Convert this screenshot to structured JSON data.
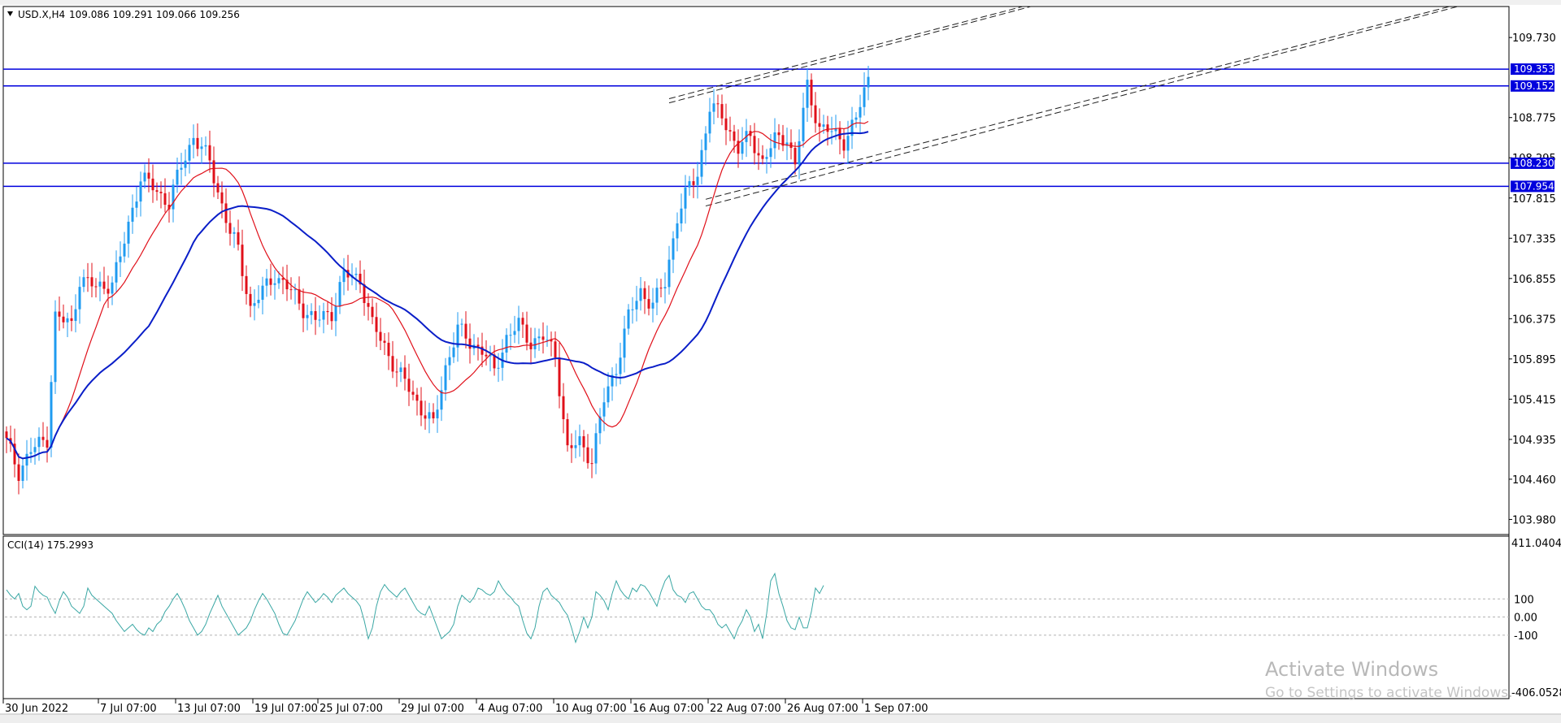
{
  "header": {
    "symbol": "USD.X,H4",
    "ohlc": "109.086 109.291 109.066 109.256"
  },
  "indicator": {
    "label": "CCI(14) 175.2993",
    "levels": [
      100,
      0,
      -100
    ],
    "level_labels": [
      "100",
      "0.00",
      "-100"
    ],
    "range": [
      -406.0528,
      411.0404
    ],
    "range_labels": [
      "411.0404",
      "-406.0528"
    ],
    "color": "#3aa7a4",
    "values": [
      150,
      120,
      100,
      130,
      60,
      40,
      60,
      170,
      140,
      120,
      110,
      60,
      20,
      90,
      140,
      110,
      60,
      40,
      20,
      60,
      160,
      120,
      100,
      80,
      60,
      40,
      20,
      -20,
      -50,
      -80,
      -60,
      -40,
      -70,
      -90,
      -100,
      -60,
      -80,
      -40,
      -20,
      30,
      60,
      100,
      130,
      90,
      40,
      -20,
      -60,
      -100,
      -80,
      -40,
      20,
      70,
      120,
      60,
      20,
      -20,
      -60,
      -100,
      -80,
      -60,
      -20,
      40,
      90,
      130,
      100,
      60,
      20,
      -40,
      -90,
      -100,
      -60,
      -20,
      40,
      100,
      140,
      110,
      80,
      100,
      130,
      110,
      80,
      120,
      140,
      160,
      130,
      110,
      90,
      60,
      -20,
      -120,
      -60,
      60,
      140,
      180,
      150,
      130,
      110,
      140,
      160,
      120,
      80,
      40,
      20,
      10,
      60,
      0,
      -60,
      -120,
      -100,
      -80,
      -40,
      60,
      120,
      100,
      80,
      110,
      160,
      150,
      130,
      120,
      140,
      200,
      160,
      130,
      110,
      80,
      60,
      -20,
      -90,
      -120,
      -60,
      60,
      140,
      160,
      120,
      100,
      80,
      40,
      10,
      -60,
      -140,
      -80,
      0,
      -60,
      0,
      140,
      120,
      90,
      40,
      130,
      200,
      150,
      120,
      100,
      160,
      140,
      180,
      170,
      140,
      100,
      60,
      140,
      200,
      230,
      150,
      120,
      110,
      80,
      130,
      140,
      100,
      60,
      40,
      40,
      10,
      -40,
      -60,
      -40,
      -80,
      -120,
      -60,
      -20,
      40,
      0,
      -80,
      -40,
      -120,
      20,
      200,
      240,
      130,
      60,
      -20,
      -60,
      -70,
      0,
      -60,
      -60,
      30,
      160,
      130,
      175
    ]
  },
  "watermark": {
    "line1": "Activate Windows",
    "line2": "Go to Settings to activate Windows."
  },
  "chart_data": {
    "type": "candlestick",
    "symbol": "USD.X",
    "timeframe": "H4",
    "last_price": 109.256,
    "ylim": [
      103.8,
      110.1
    ],
    "yticks": [
      109.73,
      108.775,
      108.295,
      107.815,
      107.335,
      106.855,
      106.375,
      105.895,
      105.415,
      104.935,
      104.46,
      103.98
    ],
    "ytick_labels": [
      "109.730",
      "108.775",
      "108.295",
      "107.815",
      "107.335",
      "106.855",
      "106.375",
      "105.895",
      "105.415",
      "104.935",
      "104.460",
      "103.980"
    ],
    "xticks": [
      {
        "label": "30 Jun 2022",
        "index": 0
      },
      {
        "label": "7 Jul 07:00",
        "index": 23
      },
      {
        "label": "13 Jul 07:00",
        "index": 42
      },
      {
        "label": "19 Jul 07:00",
        "index": 61
      },
      {
        "label": "25 Jul 07:00",
        "index": 77
      },
      {
        "label": "29 Jul 07:00",
        "index": 97
      },
      {
        "label": "4 Aug 07:00",
        "index": 116
      },
      {
        "label": "10 Aug 07:00",
        "index": 135
      },
      {
        "label": "16 Aug 07:00",
        "index": 154
      },
      {
        "label": "22 Aug 07:00",
        "index": 173
      },
      {
        "label": "26 Aug 07:00",
        "index": 192
      },
      {
        "label": "1 Sep 07:00",
        "index": 211
      }
    ],
    "up_color": "#1f9bf0",
    "down_color": "#e0101a",
    "ma_fast_color": "#e0101a",
    "ma_slow_color": "#0a1ec8",
    "hline_color": "#0000dd",
    "channel_color": "#202020",
    "horizontal_lines": [
      {
        "price": 109.353,
        "label": "109.353"
      },
      {
        "price": 109.152,
        "label": "109.152"
      },
      {
        "price": 108.23,
        "label": "108.230"
      },
      {
        "price": 107.954,
        "label": "107.954"
      }
    ],
    "channels": [
      {
        "x1": 163,
        "p1": 109.0,
        "x2": 250,
        "p2": 110.1
      },
      {
        "x1": 163,
        "p1": 108.95,
        "x2": 252,
        "p2": 110.1
      },
      {
        "x1": 172,
        "p1": 107.8,
        "x2": 355,
        "p2": 110.1
      },
      {
        "x1": 172,
        "p1": 107.72,
        "x2": 357,
        "p2": 110.1
      }
    ],
    "anchors": [
      [
        0,
        104.9
      ],
      [
        3,
        104.55
      ],
      [
        6,
        104.8
      ],
      [
        10,
        104.95
      ],
      [
        12,
        106.4
      ],
      [
        16,
        106.3
      ],
      [
        18,
        106.85
      ],
      [
        22,
        106.75
      ],
      [
        26,
        106.8
      ],
      [
        28,
        107.1
      ],
      [
        31,
        107.7
      ],
      [
        33,
        108.05
      ],
      [
        36,
        107.95
      ],
      [
        40,
        107.75
      ],
      [
        43,
        108.2
      ],
      [
        46,
        108.55
      ],
      [
        50,
        108.25
      ],
      [
        52,
        107.9
      ],
      [
        55,
        107.4
      ],
      [
        57,
        107.2
      ],
      [
        60,
        106.5
      ],
      [
        63,
        106.7
      ],
      [
        66,
        106.9
      ],
      [
        70,
        106.7
      ],
      [
        73,
        106.5
      ],
      [
        76,
        106.35
      ],
      [
        80,
        106.45
      ],
      [
        83,
        106.9
      ],
      [
        87,
        106.85
      ],
      [
        90,
        106.3
      ],
      [
        93,
        106.05
      ],
      [
        96,
        105.75
      ],
      [
        99,
        105.55
      ],
      [
        102,
        105.3
      ],
      [
        105,
        105.1
      ],
      [
        108,
        105.8
      ],
      [
        111,
        106.25
      ],
      [
        114,
        106.1
      ],
      [
        117,
        106.0
      ],
      [
        120,
        105.75
      ],
      [
        123,
        106.15
      ],
      [
        126,
        106.3
      ],
      [
        129,
        106.1
      ],
      [
        132,
        106.15
      ],
      [
        135,
        105.95
      ],
      [
        138,
        104.8
      ],
      [
        141,
        104.9
      ],
      [
        144,
        104.7
      ],
      [
        147,
        105.4
      ],
      [
        150,
        105.8
      ],
      [
        153,
        106.4
      ],
      [
        156,
        106.7
      ],
      [
        159,
        106.55
      ],
      [
        162,
        106.8
      ],
      [
        165,
        107.6
      ],
      [
        168,
        107.95
      ],
      [
        170,
        108.1
      ],
      [
        173,
        108.9
      ],
      [
        176,
        108.8
      ],
      [
        180,
        108.4
      ],
      [
        183,
        108.55
      ],
      [
        186,
        108.25
      ],
      [
        189,
        108.5
      ],
      [
        192,
        108.55
      ],
      [
        194,
        108.2
      ],
      [
        197,
        109.15
      ],
      [
        200,
        108.65
      ],
      [
        203,
        108.6
      ],
      [
        206,
        108.5
      ],
      [
        209,
        108.75
      ],
      [
        212,
        109.26
      ]
    ]
  }
}
